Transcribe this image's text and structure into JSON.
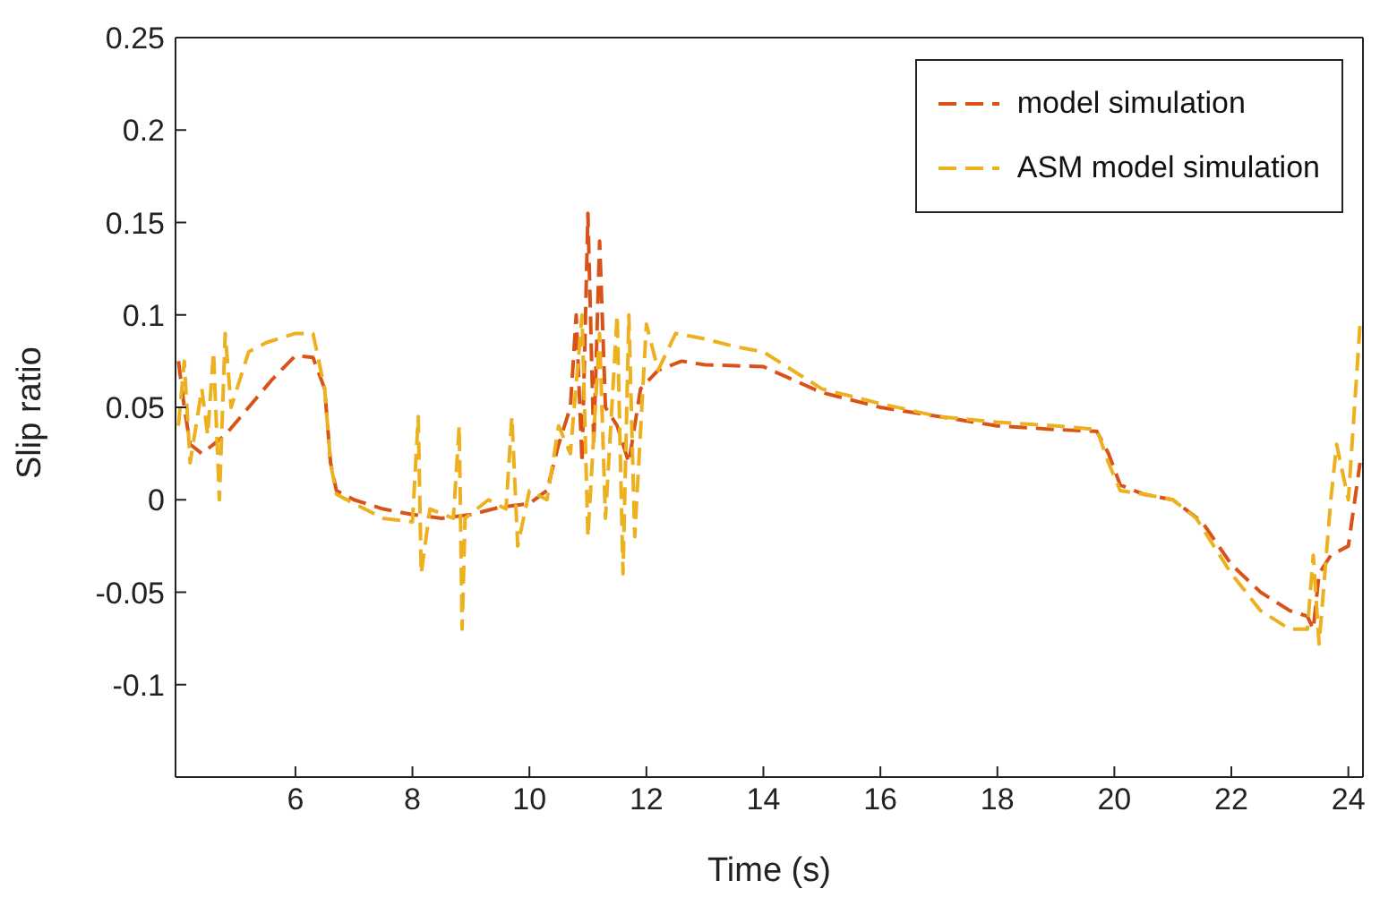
{
  "chart_data": {
    "type": "line",
    "xlabel": "Time (s)",
    "ylabel": "Slip ratio",
    "xlim": [
      3.95,
      24.25
    ],
    "xticks": [
      6,
      8,
      10,
      12,
      14,
      16,
      18,
      20,
      22,
      24
    ],
    "ylim": [
      -0.15,
      0.25
    ],
    "yticks": [
      -0.1,
      -0.05,
      0,
      0.05,
      0.1,
      0.15,
      0.2,
      0.25
    ],
    "legend": "top right",
    "marker": "none",
    "line_style": "dashed",
    "series": [
      {
        "name": "model simulation",
        "color": "#d95319",
        "x": [
          4.0,
          4.1,
          4.2,
          4.4,
          4.8,
          5.2,
          5.6,
          6.0,
          6.3,
          6.5,
          6.6,
          6.7,
          7.0,
          7.5,
          8.0,
          8.5,
          9.0,
          9.5,
          10.0,
          10.3,
          10.5,
          10.7,
          10.8,
          10.9,
          11.0,
          11.1,
          11.2,
          11.3,
          11.5,
          11.7,
          11.9,
          12.2,
          12.6,
          13,
          14,
          14.5,
          15,
          16,
          17,
          18,
          19,
          19.7,
          19.9,
          20.1,
          20.5,
          21,
          21.5,
          22,
          22.5,
          23,
          23.3,
          23.4,
          23.5,
          23.7,
          24,
          24.2
        ],
        "values": [
          0.075,
          0.05,
          0.03,
          0.025,
          0.035,
          0.05,
          0.065,
          0.078,
          0.077,
          0.06,
          0.02,
          0.005,
          0.0,
          -0.005,
          -0.008,
          -0.01,
          -0.008,
          -0.004,
          -0.002,
          0.005,
          0.03,
          0.05,
          0.1,
          0.02,
          0.155,
          0.03,
          0.14,
          0.05,
          0.04,
          0.02,
          0.06,
          0.07,
          0.075,
          0.073,
          0.072,
          0.065,
          0.058,
          0.05,
          0.045,
          0.04,
          0.038,
          0.037,
          0.025,
          0.008,
          0.003,
          0.0,
          -0.012,
          -0.035,
          -0.05,
          -0.06,
          -0.063,
          -0.07,
          -0.04,
          -0.03,
          -0.025,
          0.02
        ]
      },
      {
        "name": "ASM model simulation",
        "color": "#edb120",
        "x": [
          4.0,
          4.1,
          4.2,
          4.4,
          4.5,
          4.6,
          4.7,
          4.8,
          4.9,
          5.2,
          5.5,
          6.0,
          6.3,
          6.5,
          6.6,
          6.7,
          7.0,
          7.5,
          8.0,
          8.1,
          8.15,
          8.3,
          8.7,
          8.8,
          8.85,
          8.9,
          9.3,
          9.6,
          9.7,
          9.8,
          10.0,
          10.3,
          10.5,
          10.7,
          10.9,
          11.0,
          11.2,
          11.3,
          11.5,
          11.6,
          11.7,
          11.8,
          12.0,
          12.2,
          12.5,
          13,
          13.5,
          14,
          14.5,
          15,
          16,
          17,
          18,
          19,
          19.7,
          19.9,
          20.1,
          20.5,
          21,
          21.4,
          21.5,
          22,
          22.5,
          23,
          23.3,
          23.4,
          23.5,
          23.7,
          23.8,
          24.0,
          24.2
        ],
        "values": [
          0.04,
          0.075,
          0.02,
          0.06,
          0.035,
          0.08,
          0.0,
          0.09,
          0.05,
          0.08,
          0.085,
          0.09,
          0.09,
          0.06,
          0.02,
          0.003,
          -0.002,
          -0.01,
          -0.012,
          0.045,
          -0.04,
          -0.005,
          -0.01,
          0.04,
          -0.07,
          -0.01,
          0.0,
          -0.005,
          0.045,
          -0.025,
          0.005,
          0.0,
          0.04,
          0.025,
          0.1,
          -0.02,
          0.09,
          -0.01,
          0.1,
          -0.04,
          0.1,
          -0.02,
          0.095,
          0.07,
          0.09,
          0.087,
          0.083,
          0.08,
          0.07,
          0.06,
          0.052,
          0.045,
          0.042,
          0.04,
          0.038,
          0.02,
          0.005,
          0.003,
          0.0,
          -0.01,
          -0.015,
          -0.04,
          -0.06,
          -0.07,
          -0.07,
          -0.03,
          -0.078,
          0.0,
          0.03,
          0.0,
          0.095
        ]
      }
    ]
  }
}
